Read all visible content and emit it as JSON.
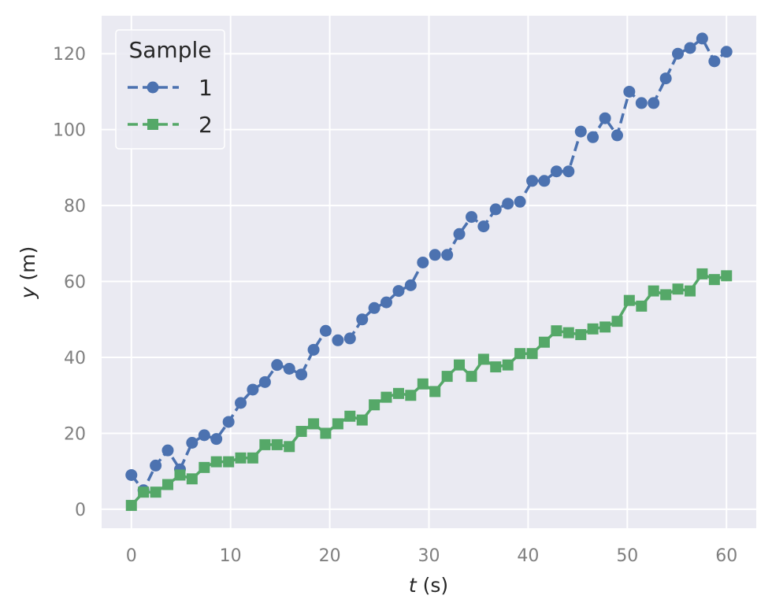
{
  "chart_data": {
    "type": "line",
    "title": "",
    "xlabel": {
      "var": "t",
      "unit": " (s)"
    },
    "ylabel": {
      "var": "y",
      "unit": " (m)"
    },
    "xlim": [
      -3,
      63
    ],
    "ylim": [
      -5,
      130
    ],
    "xticks": [
      0,
      10,
      20,
      30,
      40,
      50,
      60
    ],
    "yticks": [
      0,
      20,
      40,
      60,
      80,
      100,
      120
    ],
    "grid": true,
    "background": "#eaeaf2",
    "legend": {
      "title": "Sample",
      "placement": "top-left"
    },
    "x": [
      0,
      1.22,
      2.45,
      3.67,
      4.9,
      6.12,
      7.35,
      8.57,
      9.8,
      11.02,
      12.24,
      13.47,
      14.69,
      15.92,
      17.14,
      18.37,
      19.59,
      20.82,
      22.04,
      23.27,
      24.49,
      25.71,
      26.94,
      28.16,
      29.39,
      30.61,
      31.84,
      33.06,
      34.29,
      35.51,
      36.73,
      37.96,
      39.18,
      40.41,
      41.63,
      42.86,
      44.08,
      45.31,
      46.53,
      47.76,
      48.98,
      50.2,
      51.43,
      52.65,
      53.88,
      55.1,
      56.33,
      57.55,
      58.78,
      60
    ],
    "series": [
      {
        "name": "1",
        "color": "#4c72b0",
        "marker": "circle",
        "linestyle": "dashed",
        "values": [
          9,
          5,
          11.5,
          15.5,
          10.5,
          17.5,
          19.5,
          18.5,
          23,
          28,
          31.5,
          33.5,
          38,
          37,
          35.5,
          42,
          47,
          44.5,
          45,
          50,
          53,
          54.5,
          57.5,
          59,
          65,
          67,
          67,
          72.5,
          77,
          74.5,
          79,
          80.5,
          81,
          86.5,
          86.5,
          89,
          89,
          99.5,
          98,
          103,
          98.5,
          110,
          107,
          107,
          113.5,
          120,
          121.5,
          124,
          118,
          120.5
        ]
      },
      {
        "name": "2",
        "color": "#55a868",
        "marker": "square",
        "linestyle": "solid",
        "values": [
          1,
          4.5,
          4.5,
          6.5,
          9,
          8,
          11,
          12.5,
          12.5,
          13.5,
          13.5,
          17,
          17,
          16.5,
          20.5,
          22.5,
          20,
          22.5,
          24.5,
          23.5,
          27.5,
          29.5,
          30.5,
          30,
          33,
          31,
          35,
          38,
          35,
          39.5,
          37.5,
          38,
          41,
          41,
          44,
          47,
          46.5,
          46,
          47.5,
          48,
          49.5,
          55,
          53.5,
          57.5,
          56.5,
          58,
          57.5,
          62,
          60.5,
          61.5
        ]
      }
    ]
  }
}
